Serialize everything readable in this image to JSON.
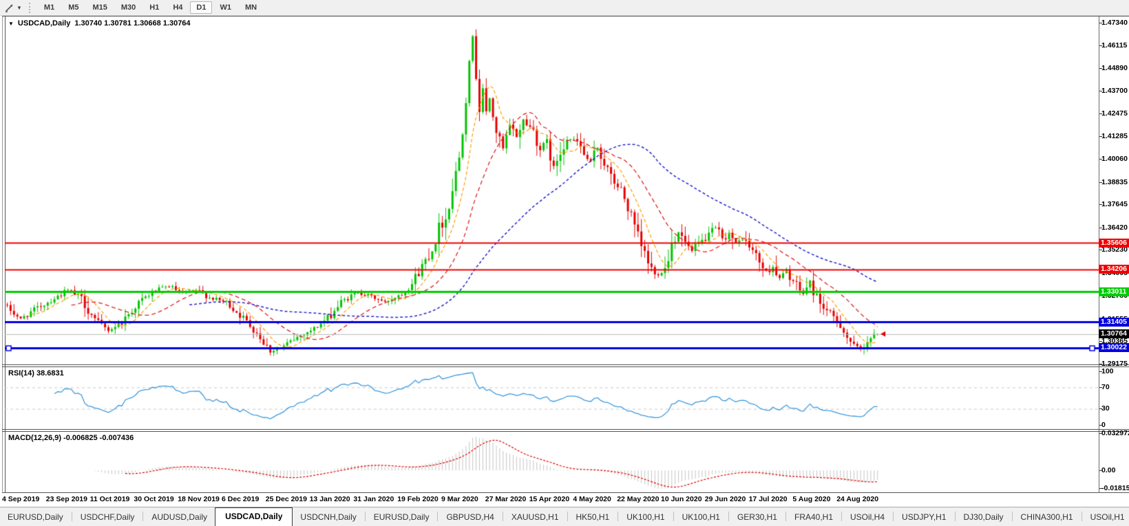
{
  "toolbar": {
    "timeframes": [
      "M1",
      "M5",
      "M15",
      "M30",
      "H1",
      "H4",
      "D1",
      "W1",
      "MN"
    ],
    "active_timeframe": "D1"
  },
  "chart_header": {
    "symbol": "USDCAD,Daily",
    "ohlc": "1.30740 1.30781 1.30668 1.30764"
  },
  "indicators": {
    "rsi_label": "RSI(14) 38.6831",
    "macd_label": "MACD(12,26,9) -0.006825 -0.007436"
  },
  "axes": {
    "price_ticks": [
      "1.47340",
      "1.46115",
      "1.44890",
      "1.43700",
      "1.42475",
      "1.41285",
      "1.40060",
      "1.38835",
      "1.37645",
      "1.36420",
      "1.35230",
      "1.34005",
      "1.32780",
      "1.31555",
      "1.30365",
      "1.29175"
    ],
    "rsi_ticks": [
      "100",
      "70",
      "30",
      "0"
    ],
    "macd_ticks": [
      "0.032972",
      "0.00",
      "-0.018154"
    ],
    "dates": [
      "4 Sep 2019",
      "23 Sep 2019",
      "11 Oct 2019",
      "30 Oct 2019",
      "18 Nov 2019",
      "6 Dec 2019",
      "25 Dec 2019",
      "13 Jan 2020",
      "31 Jan 2020",
      "19 Feb 2020",
      "9 Mar 2020",
      "27 Mar 2020",
      "15 Apr 2020",
      "4 May 2020",
      "22 May 2020",
      "10 Jun 2020",
      "29 Jun 2020",
      "17 Jul 2020",
      "5 Aug 2020",
      "24 Aug 2020"
    ]
  },
  "tabs": {
    "items": [
      "EURUSD,Daily",
      "USDCHF,Daily",
      "AUDUSD,Daily",
      "USDCAD,Daily",
      "USDCNH,Daily",
      "EURUSD,Daily",
      "GBPUSD,H4",
      "XAUUSD,H1",
      "HK50,H1",
      "UK100,H1",
      "UK100,H1",
      "GER30,H1",
      "FRA40,H1",
      "USOil,H4",
      "USDJPY,H1",
      "DJ30,Daily",
      "CHINA300,H1",
      "USOil,H1"
    ],
    "active_index": 3
  },
  "colors": {
    "bull": "#00c300",
    "bear": "#e60000",
    "ma_fast": "#ff9c00",
    "ma_mid": "#dd2222",
    "ma_slow": "#2323cc",
    "rsi_line": "#3a98dd",
    "rsi_level": "#c8c8c8",
    "macd_bar": "#c4c4c4",
    "macd_signal": "#dd0000",
    "line_red": "#ee0000",
    "line_green": "#00cc00",
    "line_blue": "#0000dd",
    "line_gray": "#bbbbbb",
    "badge_black": "#000000"
  },
  "chart_data": {
    "type": "candlestick",
    "symbol": "USDCAD",
    "timeframe": "Daily",
    "candle_count": 259,
    "last_candle": [
      1.3074,
      1.30781,
      1.30668,
      1.30764
    ],
    "peak": {
      "index": 138,
      "high": 1.4669
    },
    "price_anchors": [
      [
        0,
        1.322
      ],
      [
        4,
        1.3155
      ],
      [
        8,
        1.3205
      ],
      [
        13,
        1.3255
      ],
      [
        18,
        1.331
      ],
      [
        22,
        1.3265
      ],
      [
        26,
        1.315
      ],
      [
        30,
        1.3095
      ],
      [
        34,
        1.314
      ],
      [
        39,
        1.3245
      ],
      [
        44,
        1.331
      ],
      [
        48,
        1.333
      ],
      [
        52,
        1.329
      ],
      [
        56,
        1.331
      ],
      [
        60,
        1.327
      ],
      [
        65,
        1.3245
      ],
      [
        70,
        1.316
      ],
      [
        74,
        1.3085
      ],
      [
        78,
        1.2985
      ],
      [
        82,
        1.301
      ],
      [
        86,
        1.306
      ],
      [
        91,
        1.3105
      ],
      [
        95,
        1.316
      ],
      [
        99,
        1.3245
      ],
      [
        104,
        1.33
      ],
      [
        108,
        1.3275
      ],
      [
        112,
        1.3245
      ],
      [
        117,
        1.3295
      ],
      [
        120,
        1.3345
      ],
      [
        123,
        1.344
      ],
      [
        126,
        1.353
      ],
      [
        128,
        1.364
      ],
      [
        130,
        1.369
      ],
      [
        132,
        1.385
      ],
      [
        134,
        1.402
      ],
      [
        135,
        1.417
      ],
      [
        136,
        1.434
      ],
      [
        137,
        1.456
      ],
      [
        138,
        1.463
      ],
      [
        139,
        1.446
      ],
      [
        140,
        1.428
      ],
      [
        141,
        1.439
      ],
      [
        142,
        1.424
      ],
      [
        143,
        1.433
      ],
      [
        145,
        1.415
      ],
      [
        147,
        1.406
      ],
      [
        149,
        1.418
      ],
      [
        151,
        1.413
      ],
      [
        153,
        1.4215
      ],
      [
        156,
        1.416
      ],
      [
        158,
        1.406
      ],
      [
        160,
        1.4095
      ],
      [
        162,
        1.396
      ],
      [
        164,
        1.4055
      ],
      [
        166,
        1.412
      ],
      [
        169,
        1.41
      ],
      [
        171,
        1.403
      ],
      [
        173,
        1.3985
      ],
      [
        175,
        1.407
      ],
      [
        177,
        1.399
      ],
      [
        179,
        1.3905
      ],
      [
        182,
        1.384
      ],
      [
        184,
        1.375
      ],
      [
        186,
        1.364
      ],
      [
        188,
        1.354
      ],
      [
        190,
        1.346
      ],
      [
        192,
        1.339
      ],
      [
        195,
        1.3425
      ],
      [
        197,
        1.356
      ],
      [
        199,
        1.362
      ],
      [
        201,
        1.356
      ],
      [
        203,
        1.3515
      ],
      [
        205,
        1.3555
      ],
      [
        208,
        1.36
      ],
      [
        210,
        1.364
      ],
      [
        212,
        1.358
      ],
      [
        214,
        1.3615
      ],
      [
        216,
        1.355
      ],
      [
        218,
        1.3585
      ],
      [
        221,
        1.352
      ],
      [
        223,
        1.346
      ],
      [
        225,
        1.3405
      ],
      [
        227,
        1.3435
      ],
      [
        229,
        1.337
      ],
      [
        231,
        1.3415
      ],
      [
        234,
        1.333
      ],
      [
        236,
        1.329
      ],
      [
        238,
        1.3355
      ],
      [
        240,
        1.327
      ],
      [
        242,
        1.322
      ],
      [
        244,
        1.318
      ],
      [
        247,
        1.313
      ],
      [
        249,
        1.306
      ],
      [
        251,
        1.301
      ],
      [
        253,
        1.2998
      ],
      [
        255,
        1.3045
      ],
      [
        258,
        1.3076
      ]
    ],
    "moving_averages": [
      {
        "period": 8,
        "color": "#ff9c00",
        "dash": [
          5,
          3
        ],
        "width": 1.2
      },
      {
        "period": 20,
        "color": "#dd2222",
        "dash": [
          6,
          4
        ],
        "width": 1.3
      },
      {
        "period": 55,
        "color": "#2323cc",
        "dash": [
          4,
          3
        ],
        "width": 1.5
      }
    ],
    "hlines": [
      {
        "value": 1.35606,
        "color": "#ee0000",
        "width": 2,
        "badge": "1.35606",
        "badge_bg": "#ee0000"
      },
      {
        "value": 1.34206,
        "color": "#ee0000",
        "width": 2,
        "badge": "1.34206",
        "badge_bg": "#ee0000"
      },
      {
        "value": 1.33011,
        "color": "#00cc00",
        "width": 3,
        "badge": "1.33011",
        "badge_bg": "#00cc00"
      },
      {
        "value": 1.31405,
        "color": "#0000dd",
        "width": 3,
        "badge": "1.31405",
        "badge_bg": "#0000dd"
      },
      {
        "value": 1.30764,
        "color": "#bbbbbb",
        "width": 1,
        "badge": "1.30764",
        "badge_bg": "#000000"
      },
      {
        "value": 1.30022,
        "color": "#0000dd",
        "width": 3,
        "badge": "1.30022",
        "badge_bg": "#0000dd",
        "handles": true
      }
    ],
    "rsi": {
      "period": 14,
      "current": 38.6831,
      "levels": [
        70,
        30
      ],
      "range": [
        0,
        100
      ]
    },
    "macd": {
      "fast": 12,
      "slow": 26,
      "signal_period": 9,
      "current": [
        -0.006825,
        -0.007436
      ],
      "scale_max": 0.032972,
      "scale_min": -0.018154,
      "plot_max": 0.0345,
      "plot_min": -0.019
    }
  }
}
